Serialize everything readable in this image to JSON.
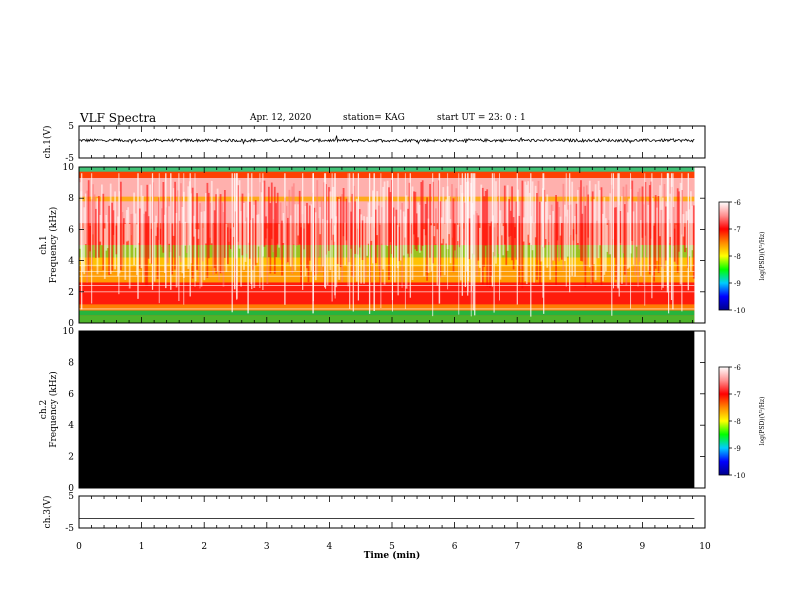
{
  "header": {
    "title": "VLF Spectra",
    "date": "Apr. 12, 2020",
    "station": "station= KAG",
    "start": "start  UT  =   23: 0  : 1"
  },
  "colorbar": {
    "label": "log(PSD)(V²/Hz)",
    "ticks": [
      "-6",
      "-7",
      "-8",
      "-9",
      "-10"
    ],
    "stops": [
      "#ffffff",
      "#ff9090",
      "#ff0000",
      "#ff8800",
      "#ffff00",
      "#00ff00",
      "#00ccff",
      "#0000ff",
      "#00008b"
    ]
  },
  "chart_data": [
    {
      "type": "line",
      "panel": "ch1-waveform",
      "ylabel": "ch.1(V)",
      "ylim": [
        -5,
        5
      ],
      "yticks": [
        "5",
        "-5"
      ],
      "series": [
        {
          "name": "ch.1",
          "level": 0.5,
          "noise": 0.45
        }
      ]
    },
    {
      "type": "heatmap",
      "panel": "ch1-spectrogram",
      "ylabel_channel": "ch.1",
      "ylabel": "Frequency (kHz)",
      "ylim": [
        0,
        10
      ],
      "yticks": [
        "0",
        "2",
        "4",
        "6",
        "8",
        "10"
      ],
      "colorbar": "log(PSD)(V²/Hz)",
      "zlim": [
        -10,
        -6
      ]
    },
    {
      "type": "heatmap",
      "panel": "ch2-spectrogram",
      "ylabel_channel": "ch.2",
      "ylabel": "Frequency (kHz)",
      "ylim": [
        0,
        10
      ],
      "yticks": [
        "0",
        "2",
        "4",
        "6",
        "8",
        "10"
      ],
      "colorbar": "log(PSD)(V²/Hz)",
      "zlim": [
        -10,
        -6
      ],
      "note": "no signal (all black)"
    },
    {
      "type": "line",
      "panel": "ch3-waveform",
      "ylabel": "ch.3(V)",
      "ylim": [
        -5,
        5
      ],
      "yticks": [
        "5",
        "-5"
      ],
      "series": [
        {
          "name": "ch.3",
          "level": -2.0,
          "noise": 0
        }
      ]
    }
  ],
  "xaxis": {
    "label": "Time (min)",
    "ticks": [
      "0",
      "1",
      "2",
      "3",
      "4",
      "5",
      "6",
      "7",
      "8",
      "9",
      "10"
    ],
    "xlim": [
      0,
      10
    ],
    "data_end": 9.83
  }
}
